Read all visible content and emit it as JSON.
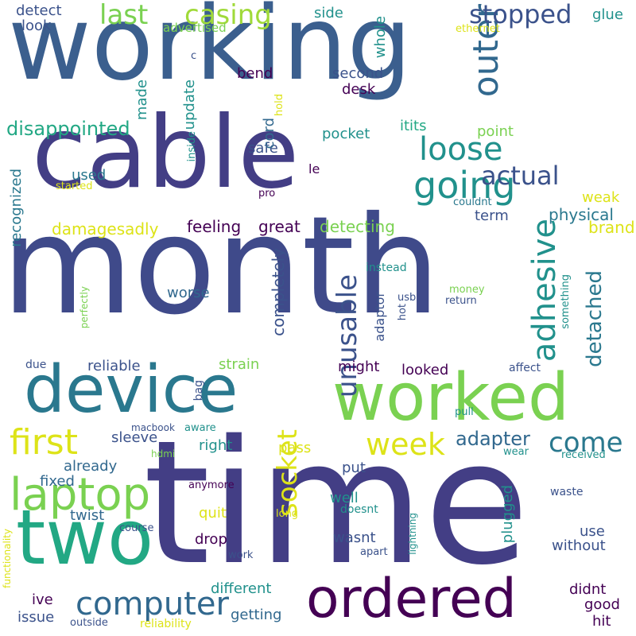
{
  "palette": {
    "dark_purple": "#45206b",
    "indigo": "#3f4a8a",
    "blue": "#3b5f8e",
    "teal_blue": "#2f7d8e",
    "teal": "#229a8a",
    "green": "#42b57a",
    "lime": "#7ad151",
    "yellow": "#dde318",
    "light_yellow": "#e8e13a"
  },
  "words": [
    {
      "text": "working",
      "color": "#3b5f8e"
    },
    {
      "text": "month",
      "color": "#3f4a8a"
    },
    {
      "text": "time",
      "color": "#433e85"
    },
    {
      "text": "cable",
      "color": "#433e85"
    },
    {
      "text": "device",
      "color": "#2a788e"
    },
    {
      "text": "worked",
      "color": "#7ad151"
    },
    {
      "text": "two",
      "color": "#22a884"
    },
    {
      "text": "ordered",
      "color": "#440154"
    },
    {
      "text": "laptop",
      "color": "#7ad151"
    },
    {
      "text": "computer",
      "color": "#31688e"
    },
    {
      "text": "first",
      "color": "#dde318"
    },
    {
      "text": "last",
      "color": "#7ad151"
    },
    {
      "text": "casing",
      "color": "#a0da39"
    },
    {
      "text": "outer",
      "color": "#31688e"
    },
    {
      "text": "stopped",
      "color": "#3b528b"
    },
    {
      "text": "loose",
      "color": "#21918c"
    },
    {
      "text": "going",
      "color": "#21918c"
    },
    {
      "text": "actual",
      "color": "#3b528b"
    },
    {
      "text": "adhesive",
      "color": "#21918c"
    },
    {
      "text": "unusable",
      "color": "#3b528b"
    },
    {
      "text": "socket",
      "color": "#dde318"
    },
    {
      "text": "week",
      "color": "#dde318"
    },
    {
      "text": "come",
      "color": "#2a788e"
    },
    {
      "text": "disappointed",
      "color": "#22a884"
    },
    {
      "text": "detached",
      "color": "#2a788e"
    },
    {
      "text": "adapter",
      "color": "#31688e"
    },
    {
      "text": "damagesadly",
      "color": "#dde318"
    },
    {
      "text": "feeling",
      "color": "#440154"
    },
    {
      "text": "great",
      "color": "#440154"
    },
    {
      "text": "detecting",
      "color": "#7ad151"
    },
    {
      "text": "completely",
      "color": "#3b528b"
    },
    {
      "text": "physical",
      "color": "#2a788e"
    },
    {
      "text": "brand",
      "color": "#dde318"
    },
    {
      "text": "weak",
      "color": "#dde318"
    },
    {
      "text": "term",
      "color": "#3b528b"
    },
    {
      "text": "point",
      "color": "#7ad151"
    },
    {
      "text": "itits",
      "color": "#22a884"
    },
    {
      "text": "pocket",
      "color": "#21918c"
    },
    {
      "text": "safe",
      "color": "#3b528b"
    },
    {
      "text": "cord",
      "color": "#31688e"
    },
    {
      "text": "used",
      "color": "#2a788e"
    },
    {
      "text": "recognized",
      "color": "#2a788e"
    },
    {
      "text": "update",
      "color": "#21918c"
    },
    {
      "text": "made",
      "color": "#21918c"
    },
    {
      "text": "bend",
      "color": "#440154"
    },
    {
      "text": "second",
      "color": "#3b528b"
    },
    {
      "text": "desk",
      "color": "#440154"
    },
    {
      "text": "side",
      "color": "#21918c"
    },
    {
      "text": "whole",
      "color": "#21918c"
    },
    {
      "text": "glue",
      "color": "#21918c"
    },
    {
      "text": "detect",
      "color": "#3b528b"
    },
    {
      "text": "look",
      "color": "#3b528b"
    },
    {
      "text": "advertised",
      "color": "#7ad151"
    },
    {
      "text": "ethernet",
      "color": "#dde318"
    },
    {
      "text": "hold",
      "color": "#dde318"
    },
    {
      "text": "c",
      "color": "#3b528b"
    },
    {
      "text": "inside",
      "color": "#21918c"
    },
    {
      "text": "started",
      "color": "#dde318"
    },
    {
      "text": "le",
      "color": "#440154"
    },
    {
      "text": "pro",
      "color": "#440154"
    },
    {
      "text": "couldnt",
      "color": "#2a788e"
    },
    {
      "text": "instead",
      "color": "#21918c"
    },
    {
      "text": "money",
      "color": "#7ad151"
    },
    {
      "text": "usb",
      "color": "#3b528b"
    },
    {
      "text": "return",
      "color": "#3b528b"
    },
    {
      "text": "something",
      "color": "#21918c"
    },
    {
      "text": "hot",
      "color": "#3b528b"
    },
    {
      "text": "adaptor",
      "color": "#3b528b"
    },
    {
      "text": "worse",
      "color": "#31688e"
    },
    {
      "text": "perfectly",
      "color": "#7ad151"
    },
    {
      "text": "reliable",
      "color": "#3b528b"
    },
    {
      "text": "strain",
      "color": "#7ad151"
    },
    {
      "text": "might",
      "color": "#440154"
    },
    {
      "text": "looked",
      "color": "#440154"
    },
    {
      "text": "affect",
      "color": "#3b528b"
    },
    {
      "text": "due",
      "color": "#3b528b"
    },
    {
      "text": "bag",
      "color": "#3b528b"
    },
    {
      "text": "aware",
      "color": "#21918c"
    },
    {
      "text": "macbook",
      "color": "#3b528b"
    },
    {
      "text": "hdmi",
      "color": "#7ad151"
    },
    {
      "text": "sleeve",
      "color": "#3b528b"
    },
    {
      "text": "right",
      "color": "#21918c"
    },
    {
      "text": "pass",
      "color": "#dde318"
    },
    {
      "text": "already",
      "color": "#31688e"
    },
    {
      "text": "fixed",
      "color": "#31688e"
    },
    {
      "text": "put",
      "color": "#3b528b"
    },
    {
      "text": "pull",
      "color": "#21918c"
    },
    {
      "text": "wear",
      "color": "#21918c"
    },
    {
      "text": "received",
      "color": "#21918c"
    },
    {
      "text": "anymore",
      "color": "#440154"
    },
    {
      "text": "well",
      "color": "#21918c"
    },
    {
      "text": "plugged",
      "color": "#21918c"
    },
    {
      "text": "waste",
      "color": "#3b528b"
    },
    {
      "text": "quit",
      "color": "#dde318"
    },
    {
      "text": "long",
      "color": "#dde318"
    },
    {
      "text": "doesnt",
      "color": "#21918c"
    },
    {
      "text": "twist",
      "color": "#31688e"
    },
    {
      "text": "course",
      "color": "#3b528b"
    },
    {
      "text": "use",
      "color": "#3b528b"
    },
    {
      "text": "drop",
      "color": "#440154"
    },
    {
      "text": "wasnt",
      "color": "#3b528b"
    },
    {
      "text": "without",
      "color": "#3b528b"
    },
    {
      "text": "functionality",
      "color": "#dde318"
    },
    {
      "text": "work",
      "color": "#3b528b"
    },
    {
      "text": "apart",
      "color": "#3b528b"
    },
    {
      "text": "lightning",
      "color": "#21918c"
    },
    {
      "text": "ive",
      "color": "#440154"
    },
    {
      "text": "different",
      "color": "#21918c"
    },
    {
      "text": "didnt",
      "color": "#440154"
    },
    {
      "text": "good",
      "color": "#440154"
    },
    {
      "text": "issue",
      "color": "#3b528b"
    },
    {
      "text": "getting",
      "color": "#31688e"
    },
    {
      "text": "hit",
      "color": "#440154"
    },
    {
      "text": "outside",
      "color": "#3b528b"
    },
    {
      "text": "reliability",
      "color": "#dde318"
    }
  ]
}
